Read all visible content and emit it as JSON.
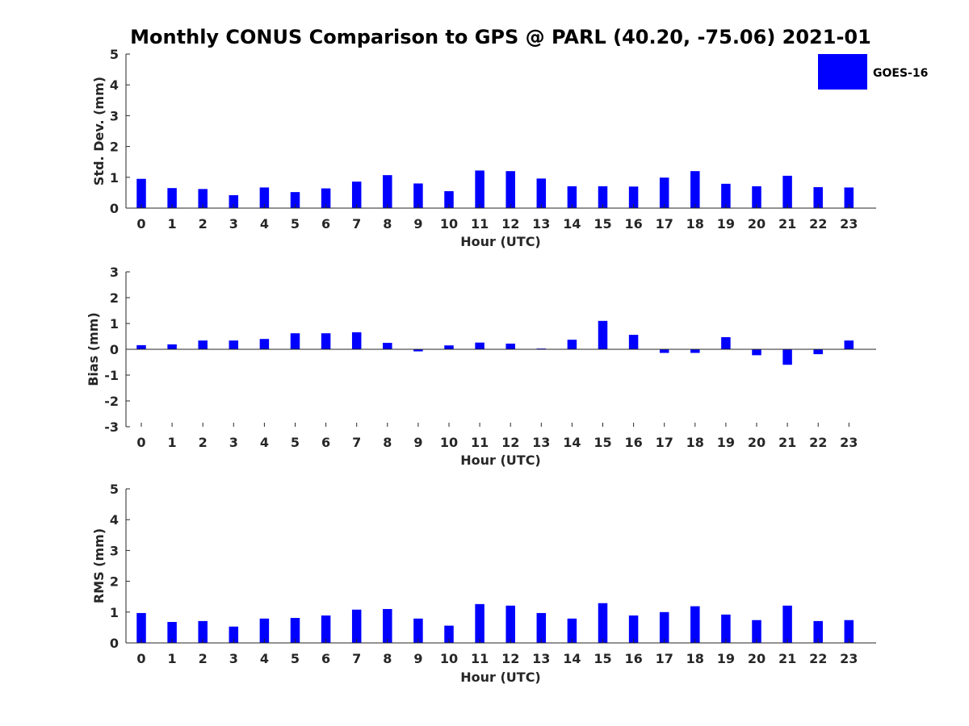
{
  "colors": {
    "bar": "#0000ff",
    "axis": "#262626",
    "background": "#ffffff"
  },
  "chart_data": {
    "title": "Monthly CONUS Comparison to GPS @ PARL (40.20, -75.06) 2021-01",
    "legend": {
      "entries": [
        "GOES-16"
      ],
      "placement": "top-right"
    },
    "panels": [
      {
        "type": "bar",
        "ylabel": "Std. Dev. (mm)",
        "xlabel": "Hour (UTC)",
        "ylim": [
          0,
          5
        ],
        "yticks": [
          0,
          1,
          2,
          3,
          4,
          5
        ],
        "categories": [
          0,
          1,
          2,
          3,
          4,
          5,
          6,
          7,
          8,
          9,
          10,
          11,
          12,
          13,
          14,
          15,
          16,
          17,
          18,
          19,
          20,
          21,
          22,
          23
        ],
        "series": [
          {
            "name": "GOES-16",
            "values": [
              0.95,
              0.65,
              0.62,
              0.42,
              0.67,
              0.52,
              0.64,
              0.86,
              1.07,
              0.8,
              0.55,
              1.22,
              1.2,
              0.96,
              0.71,
              0.71,
              0.7,
              0.99,
              1.2,
              0.79,
              0.71,
              1.05,
              0.68,
              0.67
            ]
          }
        ]
      },
      {
        "type": "bar",
        "ylabel": "Bias (mm)",
        "xlabel": "Hour (UTC)",
        "ylim": [
          -3,
          3
        ],
        "yticks": [
          -3,
          -2,
          -1,
          0,
          1,
          2,
          3
        ],
        "categories": [
          0,
          1,
          2,
          3,
          4,
          5,
          6,
          7,
          8,
          9,
          10,
          11,
          12,
          13,
          14,
          15,
          16,
          17,
          18,
          19,
          20,
          21,
          22,
          23
        ],
        "series": [
          {
            "name": "GOES-16",
            "values": [
              0.16,
              0.19,
              0.34,
              0.34,
              0.4,
              0.62,
              0.62,
              0.66,
              0.25,
              -0.08,
              0.15,
              0.26,
              0.22,
              0.03,
              0.37,
              1.1,
              0.56,
              -0.14,
              -0.14,
              0.47,
              -0.23,
              -0.6,
              -0.19,
              0.34
            ]
          }
        ]
      },
      {
        "type": "bar",
        "ylabel": "RMS (mm)",
        "xlabel": "Hour (UTC)",
        "ylim": [
          0,
          5
        ],
        "yticks": [
          0,
          1,
          2,
          3,
          4,
          5
        ],
        "categories": [
          0,
          1,
          2,
          3,
          4,
          5,
          6,
          7,
          8,
          9,
          10,
          11,
          12,
          13,
          14,
          15,
          16,
          17,
          18,
          19,
          20,
          21,
          22,
          23
        ],
        "series": [
          {
            "name": "GOES-16",
            "values": [
              0.97,
              0.68,
              0.71,
              0.53,
              0.79,
              0.81,
              0.89,
              1.08,
              1.1,
              0.79,
              0.56,
              1.26,
              1.21,
              0.97,
              0.79,
              1.29,
              0.89,
              1.0,
              1.19,
              0.92,
              0.74,
              1.21,
              0.71,
              0.74
            ]
          }
        ]
      }
    ]
  }
}
